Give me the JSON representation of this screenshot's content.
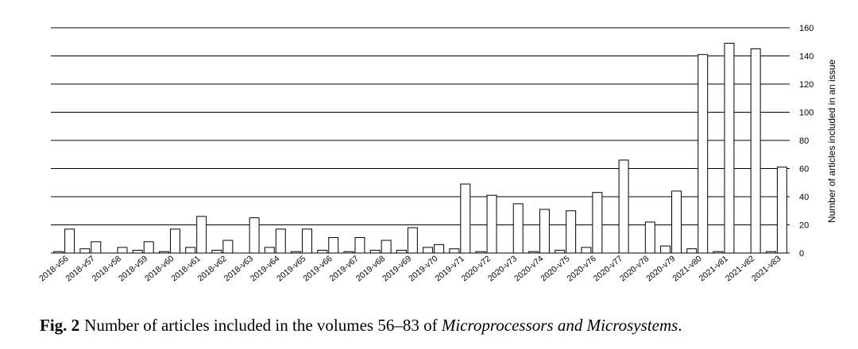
{
  "chart_data": {
    "type": "bar",
    "categories": [
      "2018-v56",
      "2018-v57",
      "2018-v58",
      "2018-v59",
      "2018-v60",
      "2018-v61",
      "2018-v62",
      "2018-v63",
      "2019-v64",
      "2019-v65",
      "2019-v66",
      "2019-v67",
      "2019-v68",
      "2019-v69",
      "2019-v70",
      "2019-v71",
      "2020-v72",
      "2020-v73",
      "2020-v74",
      "2020-v75",
      "2020-v76",
      "2020-v77",
      "2020-v78",
      "2020-v79",
      "2021-v80",
      "2021-v81",
      "2021-v82",
      "2021-v83"
    ],
    "series": [
      {
        "values": [
          1,
          3,
          0,
          2,
          1,
          4,
          2,
          0,
          4,
          1,
          2,
          1,
          2,
          2,
          4,
          3,
          1,
          0,
          1,
          2,
          4,
          0,
          0,
          5,
          3,
          1,
          0,
          1
        ]
      },
      {
        "values": [
          17,
          8,
          4,
          8,
          17,
          26,
          9,
          25,
          17,
          17,
          11,
          11,
          9,
          18,
          6,
          49,
          41,
          35,
          31,
          30,
          43,
          66,
          22,
          44,
          141,
          149,
          145,
          61
        ]
      }
    ],
    "xlabel": "",
    "ylabel": "Number of articles included in an issue",
    "ylim": [
      0,
      160
    ],
    "yticks": [
      0,
      20,
      40,
      60,
      80,
      100,
      120,
      140,
      160
    ],
    "y_axis_side": "right",
    "grid": true
  },
  "caption": {
    "label": "Fig. 2",
    "text": "Number of articles included in the volumes 56–83 of ",
    "journal": "Microprocessors and Microsystems",
    "end": "."
  }
}
